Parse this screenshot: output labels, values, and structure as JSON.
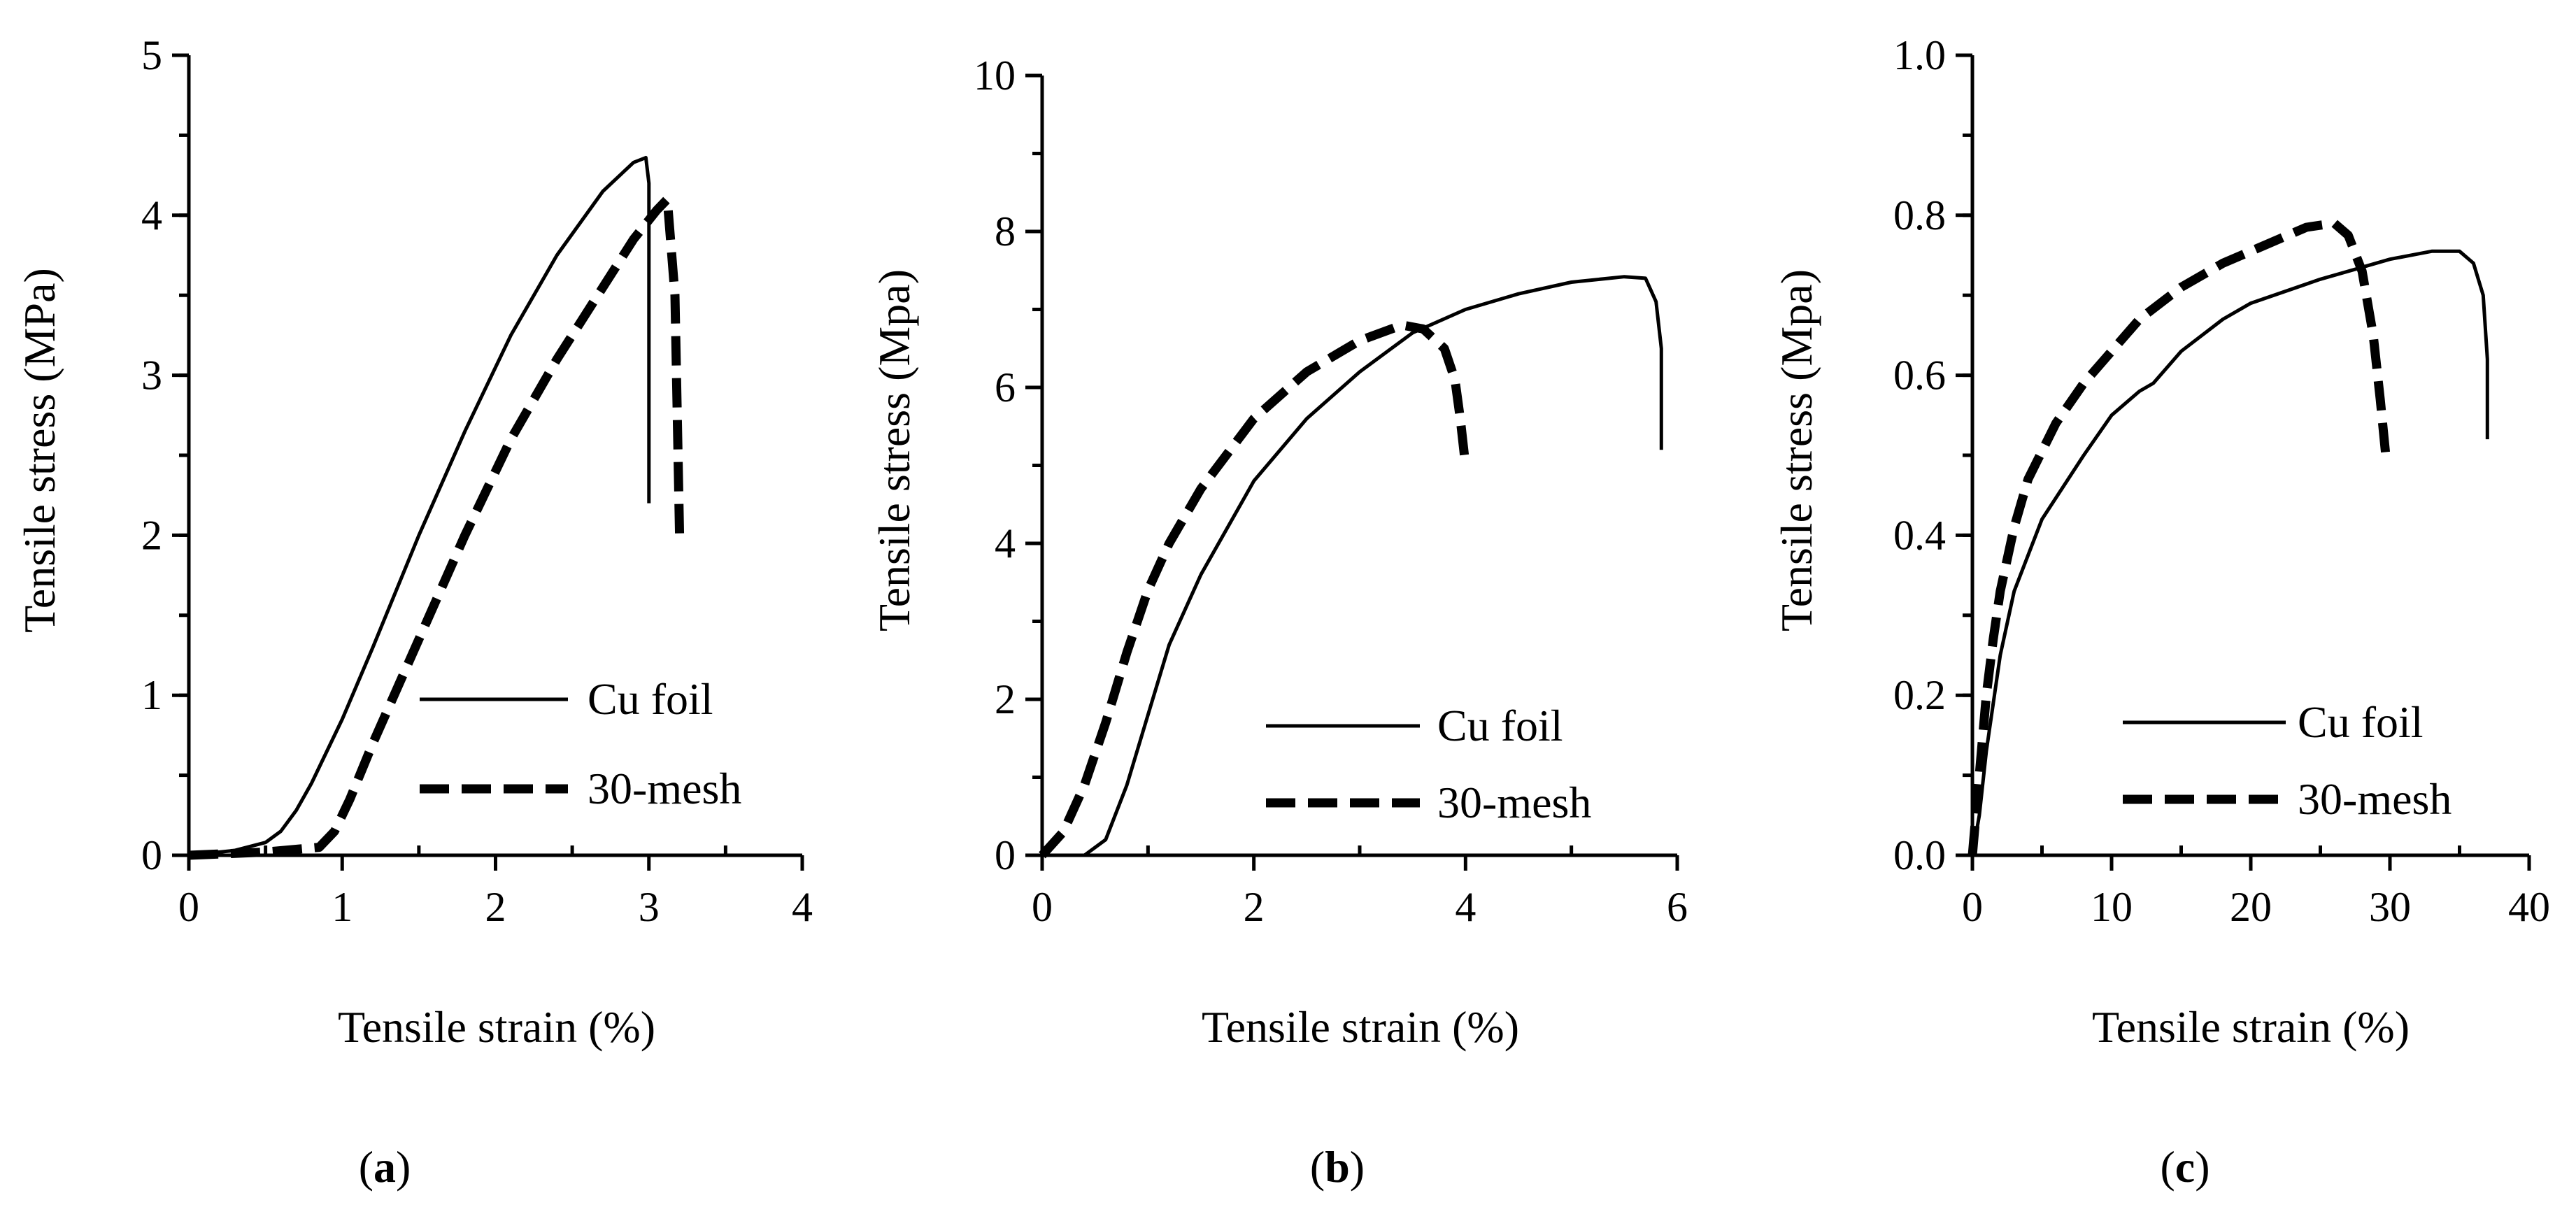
{
  "chart_data": [
    {
      "id": "a",
      "type": "line",
      "panel_label": "a",
      "xlabel": "Tensile strain (%)",
      "ylabel": "Tensile stress (MPa)",
      "xlim": [
        0,
        4
      ],
      "ylim": [
        0,
        5
      ],
      "xticks": [
        0,
        1,
        2,
        3,
        4
      ],
      "xtick_labels": [
        "0",
        "1",
        "2",
        "3",
        "4"
      ],
      "yticks": [
        0,
        1,
        2,
        3,
        4,
        5
      ],
      "ytick_labels": [
        "0",
        "1",
        "2",
        "3",
        "4",
        "5"
      ],
      "y_minor_step": 0.5,
      "grid": false,
      "legend_position": "right",
      "series": [
        {
          "name": "Cu foil",
          "style": "solid",
          "x": [
            0,
            0.3,
            0.5,
            0.6,
            0.7,
            0.8,
            1.0,
            1.2,
            1.5,
            1.8,
            2.1,
            2.4,
            2.7,
            2.9,
            2.98,
            3.0,
            3.0
          ],
          "y": [
            0,
            0.03,
            0.08,
            0.15,
            0.28,
            0.45,
            0.85,
            1.3,
            2.0,
            2.65,
            3.25,
            3.75,
            4.15,
            4.33,
            4.36,
            4.2,
            2.2
          ]
        },
        {
          "name": "30-mesh",
          "style": "dashed",
          "x": [
            0,
            0.5,
            0.85,
            0.95,
            1.05,
            1.2,
            1.5,
            1.8,
            2.1,
            2.4,
            2.7,
            2.9,
            3.05,
            3.12,
            3.17,
            3.2
          ],
          "y": [
            0,
            0.02,
            0.05,
            0.15,
            0.35,
            0.7,
            1.35,
            2.0,
            2.6,
            3.1,
            3.55,
            3.85,
            4.03,
            4.1,
            3.5,
            2.0
          ]
        }
      ]
    },
    {
      "id": "b",
      "type": "line",
      "panel_label": "b",
      "xlabel": "Tensile strain (%)",
      "ylabel": "Tensile stress (Mpa)",
      "xlim": [
        0,
        6
      ],
      "ylim": [
        0,
        10
      ],
      "xticks": [
        0,
        2,
        4,
        6
      ],
      "xtick_labels": [
        "0",
        "2",
        "4",
        "6"
      ],
      "yticks": [
        0,
        2,
        4,
        6,
        8,
        10
      ],
      "ytick_labels": [
        "0",
        "2",
        "4",
        "6",
        "8",
        "10"
      ],
      "y_minor_step": 1,
      "grid": false,
      "legend_position": "right",
      "series": [
        {
          "name": "Cu foil",
          "style": "solid",
          "x": [
            0,
            0.4,
            0.6,
            0.8,
            1.0,
            1.2,
            1.5,
            2.0,
            2.5,
            3.0,
            3.5,
            4.0,
            4.5,
            5.0,
            5.5,
            5.7,
            5.8,
            5.85,
            5.85
          ],
          "y": [
            0,
            0,
            0.2,
            0.9,
            1.8,
            2.7,
            3.6,
            4.8,
            5.6,
            6.2,
            6.7,
            7.0,
            7.2,
            7.35,
            7.42,
            7.4,
            7.1,
            6.5,
            5.2
          ]
        },
        {
          "name": "30-mesh",
          "style": "dashed",
          "x": [
            0,
            0.2,
            0.4,
            0.6,
            0.8,
            1.0,
            1.2,
            1.5,
            2.0,
            2.5,
            3.0,
            3.4,
            3.6,
            3.8,
            3.9,
            3.95,
            4.0
          ],
          "y": [
            0,
            0.3,
            0.9,
            1.7,
            2.6,
            3.4,
            4.0,
            4.7,
            5.6,
            6.2,
            6.6,
            6.8,
            6.75,
            6.5,
            6.1,
            5.6,
            5.0
          ]
        }
      ]
    },
    {
      "id": "c",
      "type": "line",
      "panel_label": "c",
      "xlabel": "Tensile strain (%)",
      "ylabel": "Tensile stress (Mpa)",
      "xlim": [
        0,
        40
      ],
      "ylim": [
        0,
        1.0
      ],
      "xticks": [
        0,
        10,
        20,
        30,
        40
      ],
      "xtick_labels": [
        "0",
        "10",
        "20",
        "30",
        "40"
      ],
      "yticks": [
        0,
        0.2,
        0.4,
        0.6,
        0.8,
        1.0
      ],
      "ytick_labels": [
        "0.0",
        "0.2",
        "0.4",
        "0.6",
        "0.8",
        "1.0"
      ],
      "y_minor_step": 0.1,
      "grid": false,
      "legend_position": "right",
      "series": [
        {
          "name": "Cu foil",
          "style": "solid",
          "x": [
            0,
            0.5,
            1,
            2,
            3,
            5,
            8,
            10,
            12,
            13,
            15,
            18,
            20,
            25,
            28,
            30,
            33,
            35,
            36,
            36.7,
            37,
            37
          ],
          "y": [
            0,
            0.05,
            0.13,
            0.25,
            0.33,
            0.42,
            0.5,
            0.55,
            0.58,
            0.59,
            0.63,
            0.67,
            0.69,
            0.72,
            0.735,
            0.745,
            0.755,
            0.755,
            0.74,
            0.7,
            0.62,
            0.52
          ]
        },
        {
          "name": "30-mesh",
          "style": "dashed",
          "x": [
            0,
            0.5,
            1,
            1.5,
            2,
            3,
            4,
            6,
            8,
            10,
            12,
            15,
            18,
            20,
            22,
            24,
            26,
            27,
            28,
            28.8,
            29.3,
            29.7
          ],
          "y": [
            0,
            0.1,
            0.2,
            0.27,
            0.33,
            0.41,
            0.47,
            0.54,
            0.59,
            0.63,
            0.67,
            0.71,
            0.74,
            0.755,
            0.77,
            0.785,
            0.79,
            0.775,
            0.73,
            0.65,
            0.57,
            0.5
          ]
        }
      ]
    }
  ]
}
